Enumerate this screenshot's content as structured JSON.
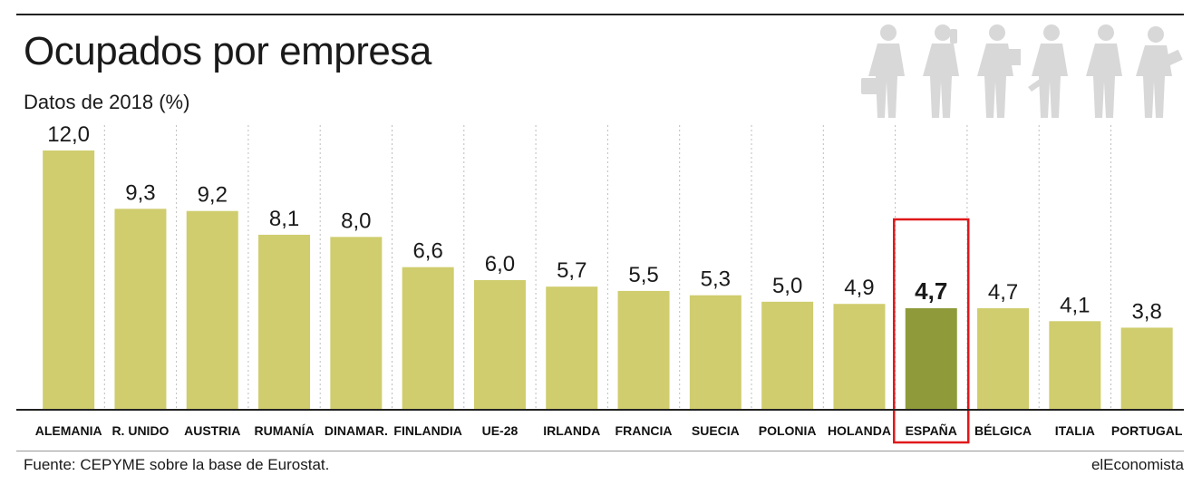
{
  "header": {
    "title": "Ocupados por empresa",
    "subtitle": "Datos de 2018 (%)"
  },
  "footer": {
    "source": "Fuente: CEPYME sobre la base de Eurostat.",
    "brand": "elEconomista"
  },
  "colors": {
    "bar": "#cfcd6e",
    "highlight_bar": "#8f9b3a",
    "highlight_box": "#e0181b",
    "people_icon": "#d8d8d8"
  },
  "icons": [
    "businessman-briefcase-icon",
    "businessman-phone-icon",
    "businessman-papers-icon",
    "businessman-laptop-icon",
    "businessman-standing-icon",
    "businesswoman-folder-icon"
  ],
  "chart_data": {
    "type": "bar",
    "categories": [
      "ALEMANIA",
      "R. UNIDO",
      "AUSTRIA",
      "RUMANÍA",
      "DINAMAR.",
      "FINLANDIA",
      "UE-28",
      "IRLANDA",
      "FRANCIA",
      "SUECIA",
      "POLONIA",
      "HOLANDA",
      "ESPAÑA",
      "BÉLGICA",
      "ITALIA",
      "PORTUGAL"
    ],
    "values": [
      12.0,
      9.3,
      9.2,
      8.1,
      8.0,
      6.6,
      6.0,
      5.7,
      5.5,
      5.3,
      5.0,
      4.9,
      4.7,
      4.7,
      4.1,
      3.8
    ],
    "value_labels": [
      "12,0",
      "9,3",
      "9,2",
      "8,1",
      "8,0",
      "6,6",
      "6,0",
      "5,7",
      "5,5",
      "5,3",
      "5,0",
      "4,9",
      "4,7",
      "4,7",
      "4,1",
      "3,8"
    ],
    "highlight": "ESPAÑA",
    "ylim": [
      0,
      12
    ],
    "grid": "vertical dotted separators",
    "legend": "none"
  }
}
